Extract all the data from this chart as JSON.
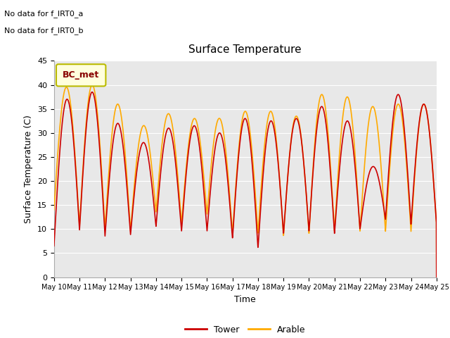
{
  "title": "Surface Temperature",
  "xlabel": "Time",
  "ylabel": "Surface Temperature (C)",
  "ylim": [
    0,
    45
  ],
  "annotation_lines": [
    "No data for f_IRT0_a",
    "No data for f_IRT0_b"
  ],
  "legend_box_label": "BC_met",
  "legend_box_color": "#ffffdd",
  "legend_box_edge_color": "#bbbb00",
  "legend_box_text_color": "#880000",
  "tower_color": "#cc0000",
  "arable_color": "#ffaa00",
  "bg_color": "#e8e8e8",
  "grid_color": "#ffffff",
  "tick_dates": [
    "May 10",
    "May 11",
    "May 12",
    "May 13",
    "May 14",
    "May 15",
    "May 16",
    "May 17",
    "May 18",
    "May 19",
    "May 20",
    "May 21",
    "May 22",
    "May 23",
    "May 24",
    "May 25"
  ],
  "tower_peaks": [
    37.0,
    38.5,
    32.0,
    28.0,
    31.0,
    31.5,
    30.0,
    33.0,
    32.5,
    33.0,
    35.5,
    32.5,
    23.0,
    38.0,
    36.0,
    11.0
  ],
  "tower_mins": [
    6.5,
    9.8,
    8.5,
    8.8,
    10.5,
    9.5,
    9.5,
    8.0,
    6.0,
    9.0,
    9.5,
    9.0,
    10.0,
    12.0,
    11.0,
    11.0
  ],
  "arable_peaks": [
    14.0,
    40.0,
    36.0,
    31.5,
    34.0,
    33.0,
    33.0,
    34.5,
    34.5,
    33.5,
    38.0,
    37.5,
    35.5,
    36.0,
    36.0,
    11.0
  ],
  "arable_mins": [
    14.0,
    10.5,
    10.0,
    9.5,
    13.5,
    11.0,
    13.0,
    9.0,
    9.0,
    8.5,
    9.0,
    9.5,
    9.5,
    9.5,
    9.5,
    11.0
  ]
}
